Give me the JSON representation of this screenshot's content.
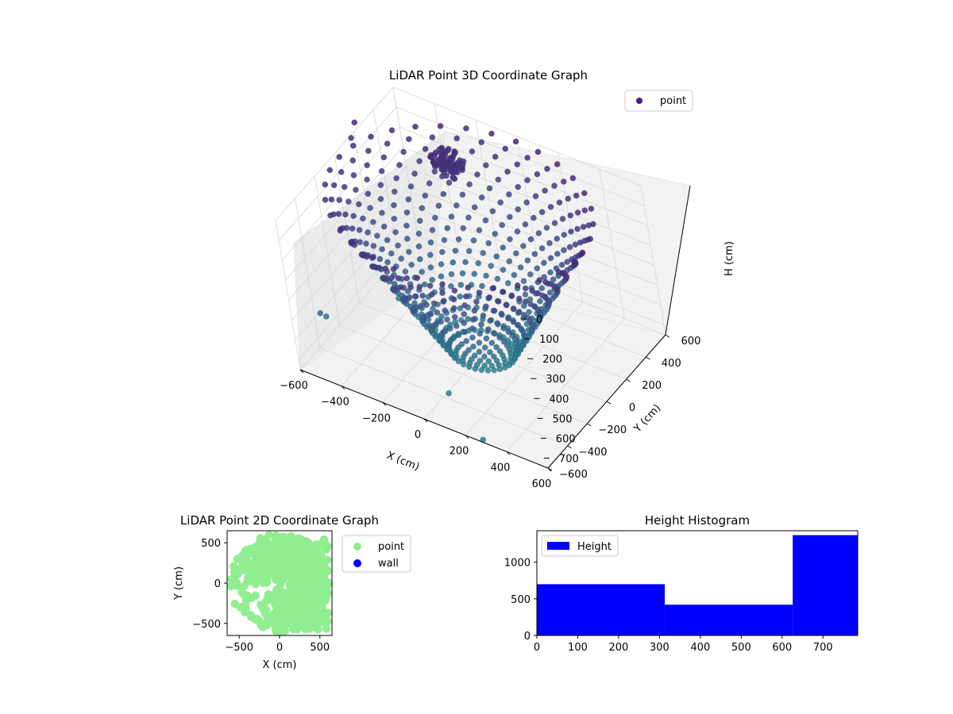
{
  "figure": {
    "background": "#ffffff"
  },
  "chart_data": [
    {
      "id": "lidar-3d",
      "type": "scatter",
      "projection": "3d",
      "title": "LiDAR Point 3D Coordinate Graph",
      "xlabel": "X (cm)",
      "ylabel": "Y (cm)",
      "zlabel": "H (cm)",
      "xlim": [
        -600,
        600
      ],
      "ylim": [
        -600,
        600
      ],
      "zlim": [
        0,
        750
      ],
      "z_inverted": true,
      "xticks": [
        "−600",
        "−400",
        "−200",
        "0",
        "200",
        "400",
        "600"
      ],
      "yticks": [
        "−600",
        "−400",
        "−200",
        "0",
        "200",
        "400",
        "600"
      ],
      "zticks": [
        "0",
        "100",
        "200",
        "300",
        "400",
        "500",
        "600",
        "700"
      ],
      "grid": true,
      "legend": {
        "placement": "top-right",
        "entries": [
          {
            "label": "point",
            "color": "#482173"
          }
        ]
      },
      "colormap": "viridis",
      "shape": "ring of points spreading outward from about 150 cm radius at 700 cm depth to about 600 cm radius near the surface, with a dense cluster near (-250, 350, 100) and scattered outliers",
      "series": [
        {
          "name": "point",
          "color": "#482173"
        }
      ]
    },
    {
      "id": "lidar-2d",
      "type": "scatter",
      "title": "LiDAR Point 2D Coordinate Graph",
      "xlabel": "X (cm)",
      "ylabel": "Y (cm)",
      "xlim": [
        -650,
        650
      ],
      "ylim": [
        -650,
        650
      ],
      "xticks": [
        "−500",
        "0",
        "500"
      ],
      "yticks": [
        "−500",
        "0",
        "500"
      ],
      "grid": false,
      "legend": {
        "placement": "outside-right",
        "entries": [
          {
            "label": "point",
            "color": "#90ee90"
          },
          {
            "label": "wall",
            "color": "#0000ff"
          }
        ]
      },
      "series": [
        {
          "name": "point",
          "color": "#90ee90"
        },
        {
          "name": "wall",
          "color": "#0000ff",
          "values": []
        }
      ]
    },
    {
      "id": "height-hist",
      "type": "bar",
      "title": "Height Histogram",
      "xlim": [
        0,
        785
      ],
      "ylim": [
        0,
        1430
      ],
      "xticks": [
        "0",
        "100",
        "200",
        "300",
        "400",
        "500",
        "600",
        "700"
      ],
      "yticks": [
        "0",
        "500",
        "1000"
      ],
      "grid": false,
      "legend": {
        "placement": "top-left",
        "entries": [
          {
            "label": "Height",
            "color": "#0000ff"
          }
        ]
      },
      "bins": [
        {
          "from": 0,
          "to": 313,
          "count": 700
        },
        {
          "from": 313,
          "to": 626,
          "count": 420
        },
        {
          "from": 626,
          "to": 785,
          "count": 1370
        }
      ],
      "series": [
        {
          "name": "Height",
          "color": "#0000ff"
        }
      ]
    }
  ]
}
